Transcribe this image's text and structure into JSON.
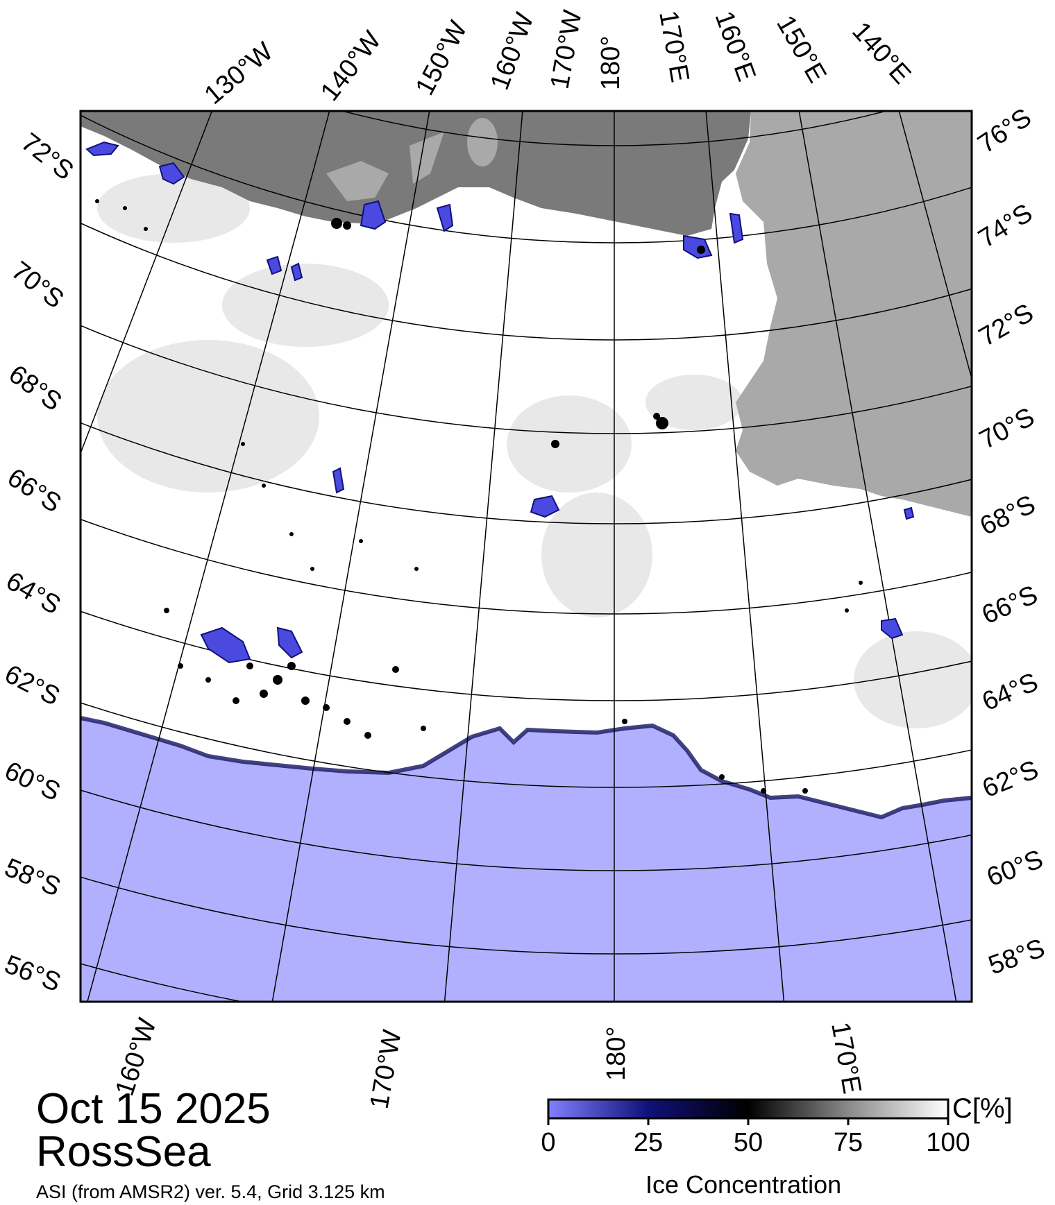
{
  "map": {
    "date": "Oct 15 2025",
    "region": "RossSea",
    "source_note": "ASI (from AMSR2) ver. 5.4,  Grid 3.125 km",
    "top_longitudes": [
      "130°W",
      "140°W",
      "150°W",
      "160°W",
      "170°W",
      "180°",
      "170°E",
      "160°E",
      "150°E",
      "140°E"
    ],
    "left_latitudes": [
      "72°S",
      "70°S",
      "68°S",
      "66°S",
      "64°S",
      "62°S",
      "60°S",
      "58°S",
      "56°S"
    ],
    "right_latitudes": [
      "76°S",
      "74°S",
      "72°S",
      "70°S",
      "68°S",
      "66°S",
      "64°S",
      "62°S",
      "60°S",
      "58°S"
    ],
    "bottom_longitudes": [
      "160°W",
      "170°W",
      "180°",
      "170°E"
    ],
    "colors": {
      "land": "#7a7a7a",
      "ice_shelf": "#a9a9a9",
      "open_water": "#b0b0ff",
      "sea_ice": "#ffffff",
      "low_concentration": "#4a4ae0"
    }
  },
  "colorbar": {
    "unit": "C[%]",
    "title": "Ice Concentration",
    "ticks": [
      "0",
      "25",
      "50",
      "75",
      "100"
    ],
    "stops": [
      "#8080ff",
      "#10107a",
      "#000000",
      "#8a8a8a",
      "#ffffff"
    ]
  }
}
